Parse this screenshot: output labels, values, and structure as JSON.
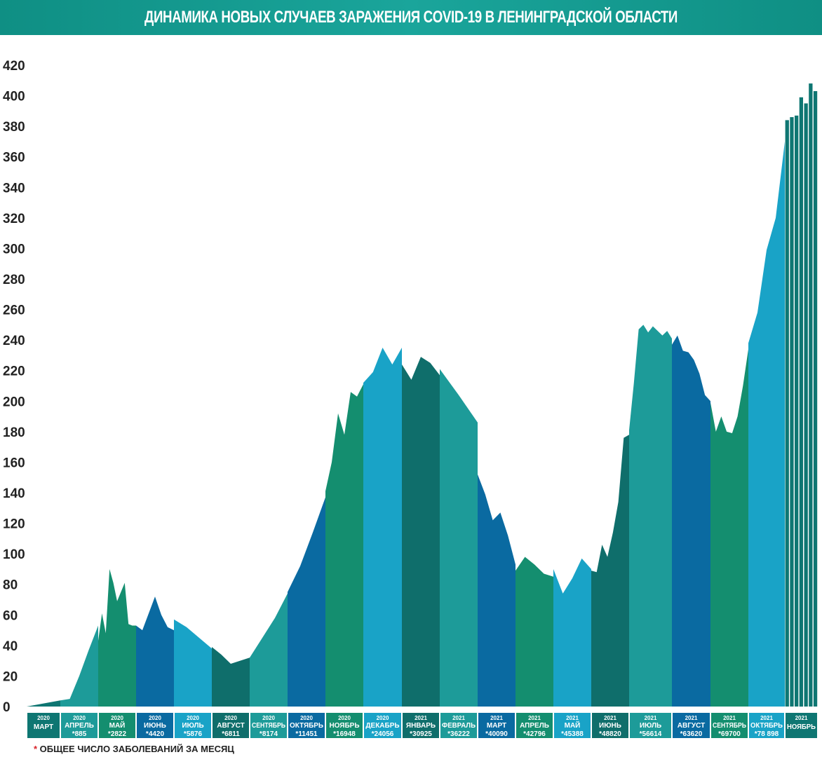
{
  "title": "ДИНАМИКА НОВЫХ СЛУЧАЕВ ЗАРАЖЕНИЯ COVID-19 В ЛЕНИНГРАДСКОЙ ОБЛАСТИ",
  "footnote": {
    "star": "*",
    "text": " ОБЩЕЕ ЧИСЛО ЗАБОЛЕВАНИЙ ЗА МЕСЯЦ"
  },
  "colors": {
    "banner": "#14998f",
    "palette": [
      "#0e7672",
      "#1d9b99",
      "#148e6f",
      "#0a6aa1",
      "#19a3c7",
      "#0f6e6b"
    ]
  },
  "chart_data": {
    "type": "area",
    "title": "ДИНАМИКА НОВЫХ СЛУЧАЕВ ЗАРАЖЕНИЯ COVID-19 В ЛЕНИНГРАДСКОЙ ОБЛАСТИ",
    "xlabel": "",
    "ylabel": "",
    "ylim": [
      0,
      420
    ],
    "yticks": [
      0,
      20,
      40,
      60,
      80,
      100,
      120,
      140,
      160,
      180,
      200,
      220,
      240,
      260,
      280,
      300,
      320,
      340,
      360,
      380,
      400,
      420
    ],
    "grid": false,
    "months": [
      {
        "year": "2020",
        "name": "МАРТ",
        "total": "",
        "color": "#0e7672",
        "values": [
          0,
          4
        ]
      },
      {
        "year": "2020",
        "name": "АПРЕЛЬ",
        "total": "*885",
        "color": "#1d9b99",
        "values": [
          4,
          5,
          20,
          37,
          53
        ]
      },
      {
        "year": "2020",
        "name": "МАЙ",
        "total": "*2822",
        "color": "#148e6f",
        "values": [
          43,
          61,
          48,
          90,
          81,
          69,
          75,
          81,
          54,
          53,
          53
        ]
      },
      {
        "year": "2020",
        "name": "ИЮНЬ",
        "total": "*4420",
        "color": "#0a6aa1",
        "values": [
          53,
          50,
          61,
          72,
          60,
          52,
          50
        ]
      },
      {
        "year": "2020",
        "name": "ИЮЛЬ",
        "total": "*5876",
        "color": "#19a3c7",
        "values": [
          57,
          52,
          45,
          38
        ]
      },
      {
        "year": "2020",
        "name": "АВГУСТ",
        "total": "*6811",
        "color": "#0f6e6b",
        "values": [
          39,
          34,
          28,
          30,
          32
        ]
      },
      {
        "year": "2020",
        "name": "СЕНТЯБРЬ",
        "total": "*8174",
        "color": "#1d9b99",
        "values": [
          32,
          45,
          58,
          74
        ]
      },
      {
        "year": "2020",
        "name": "ОКТЯБРЬ",
        "total": "*11451",
        "color": "#0a6aa1",
        "values": [
          75,
          92,
          114,
          137
        ]
      },
      {
        "year": "2020",
        "name": "НОЯБРЬ",
        "total": "*16948",
        "color": "#148e6f",
        "values": [
          141,
          160,
          192,
          178,
          206,
          203,
          211
        ]
      },
      {
        "year": "2020",
        "name": "ДЕКАБРЬ",
        "total": "*24056",
        "color": "#19a3c7",
        "values": [
          212,
          219,
          235,
          224,
          235
        ]
      },
      {
        "year": "2021",
        "name": "ЯНВАРЬ",
        "total": "*30925",
        "color": "#0f6e6b",
        "values": [
          224,
          214,
          229,
          225,
          217
        ]
      },
      {
        "year": "2021",
        "name": "ФЕВРАЛЬ",
        "total": "*36222",
        "color": "#1d9b99",
        "values": [
          221,
          204,
          186
        ]
      },
      {
        "year": "2021",
        "name": "МАРТ",
        "total": "*40090",
        "color": "#0a6aa1",
        "values": [
          152,
          139,
          122,
          127,
          112,
          93
        ]
      },
      {
        "year": "2021",
        "name": "АПРЕЛЬ",
        "total": "*42796",
        "color": "#148e6f",
        "values": [
          89,
          98,
          93,
          87,
          85
        ]
      },
      {
        "year": "2021",
        "name": "МАЙ",
        "total": "*45388",
        "color": "#19a3c7",
        "values": [
          90,
          74,
          84,
          97,
          90
        ]
      },
      {
        "year": "2021",
        "name": "ИЮНЬ",
        "total": "*48820",
        "color": "#0f6e6b",
        "values": [
          89,
          88,
          106,
          98,
          114,
          134,
          176,
          178
        ]
      },
      {
        "year": "2021",
        "name": "ИЮЛЬ",
        "total": "*56614",
        "color": "#1d9b99",
        "values": [
          181,
          212,
          247,
          250,
          245,
          249,
          246,
          243,
          246,
          241
        ]
      },
      {
        "year": "2021",
        "name": "АВГУСТ",
        "total": "*63620",
        "color": "#0a6aa1",
        "values": [
          237,
          243,
          233,
          232,
          227,
          218,
          204,
          200
        ]
      },
      {
        "year": "2021",
        "name": "СЕНТЯБРЬ",
        "total": "*69700",
        "color": "#148e6f",
        "values": [
          199,
          180,
          190,
          180,
          179,
          190,
          210,
          234
        ]
      },
      {
        "year": "2021",
        "name": "ОКТЯБРЬ",
        "total": "*78 898",
        "color": "#19a3c7",
        "values": [
          238,
          258,
          299,
          320,
          370
        ]
      },
      {
        "year": "2021",
        "name": "НОЯБРЬ",
        "total": "",
        "color": "#0e7672",
        "values": [
          384,
          386,
          387,
          399,
          395,
          408,
          403
        ]
      }
    ]
  }
}
